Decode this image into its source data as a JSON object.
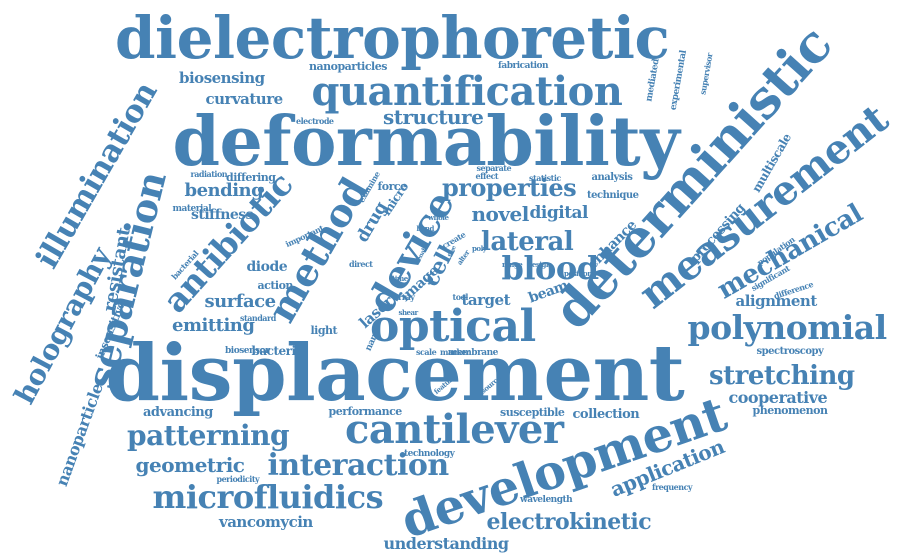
{
  "color": "#4682b4",
  "words": [
    {
      "text": "displacement"
    },
    {
      "text": "deformability"
    },
    {
      "text": "dielectrophoretic"
    },
    {
      "text": "deterministic"
    },
    {
      "text": "development"
    },
    {
      "text": "quantification"
    },
    {
      "text": "measurement"
    },
    {
      "text": "optical"
    },
    {
      "text": "cantilever"
    },
    {
      "text": "separation"
    },
    {
      "text": "illumination"
    },
    {
      "text": "holography"
    },
    {
      "text": "method"
    },
    {
      "text": "antibiotic"
    },
    {
      "text": "device"
    },
    {
      "text": "polynomial"
    },
    {
      "text": "mechanical"
    },
    {
      "text": "microfluidics"
    },
    {
      "text": "interaction"
    },
    {
      "text": "patterning"
    },
    {
      "text": "blood"
    },
    {
      "text": "lateral"
    },
    {
      "text": "stretching"
    },
    {
      "text": "electrokinetic"
    },
    {
      "text": "properties"
    },
    {
      "text": "structure"
    },
    {
      "text": "application"
    },
    {
      "text": "geometric"
    },
    {
      "text": "resistant"
    },
    {
      "text": "nanoparticle"
    },
    {
      "text": "bending"
    },
    {
      "text": "novel"
    },
    {
      "text": "digital"
    },
    {
      "text": "cell"
    },
    {
      "text": "emitting"
    },
    {
      "text": "surface"
    },
    {
      "text": "understanding"
    },
    {
      "text": "vancomycin"
    },
    {
      "text": "biosensing"
    },
    {
      "text": "curvature"
    },
    {
      "text": "stiffness"
    },
    {
      "text": "cooperative"
    },
    {
      "text": "alignment"
    },
    {
      "text": "target"
    },
    {
      "text": "drug"
    },
    {
      "text": "laser"
    },
    {
      "text": "image"
    },
    {
      "text": "nanoparticles"
    },
    {
      "text": "enhance"
    },
    {
      "text": "beam"
    },
    {
      "text": "processing"
    },
    {
      "text": "multiscale"
    },
    {
      "text": "collection"
    },
    {
      "text": "advancing"
    },
    {
      "text": "diode"
    },
    {
      "text": "performance"
    },
    {
      "text": "susceptible"
    },
    {
      "text": "phenomenon"
    },
    {
      "text": "spectroscopy"
    },
    {
      "text": "bacteria"
    },
    {
      "text": "membrane"
    },
    {
      "text": "technology"
    },
    {
      "text": "micro"
    },
    {
      "text": "force"
    },
    {
      "text": "differing"
    },
    {
      "text": "action"
    },
    {
      "text": "light"
    },
    {
      "text": "insensitive"
    },
    {
      "text": "analysis"
    },
    {
      "text": "technique"
    },
    {
      "text": "fabrication"
    },
    {
      "text": "electrode"
    },
    {
      "text": "mediated"
    },
    {
      "text": "experimental"
    },
    {
      "text": "supervisor"
    },
    {
      "text": "wavelength"
    },
    {
      "text": "frequency"
    },
    {
      "text": "periodicity"
    },
    {
      "text": "material"
    },
    {
      "text": "radiation"
    },
    {
      "text": "bacterial"
    },
    {
      "text": "important"
    },
    {
      "text": "standard"
    },
    {
      "text": "tool"
    },
    {
      "text": "effect"
    },
    {
      "text": "statistic"
    },
    {
      "text": "separate"
    },
    {
      "text": "examine"
    },
    {
      "text": "population"
    },
    {
      "text": "significant"
    },
    {
      "text": "difference"
    },
    {
      "text": "biosensor"
    },
    {
      "text": "nano"
    },
    {
      "text": "scale"
    },
    {
      "text": "marker"
    },
    {
      "text": "feature"
    },
    {
      "text": "source"
    },
    {
      "text": "direct"
    },
    {
      "text": "range"
    },
    {
      "text": "design"
    },
    {
      "text": "position"
    },
    {
      "text": "create"
    },
    {
      "text": "array"
    },
    {
      "text": "shear"
    },
    {
      "text": "time"
    },
    {
      "text": "alter"
    },
    {
      "text": "band"
    },
    {
      "text": "whole"
    },
    {
      "text": "enable"
    },
    {
      "text": "free"
    },
    {
      "text": "poly"
    }
  ]
}
